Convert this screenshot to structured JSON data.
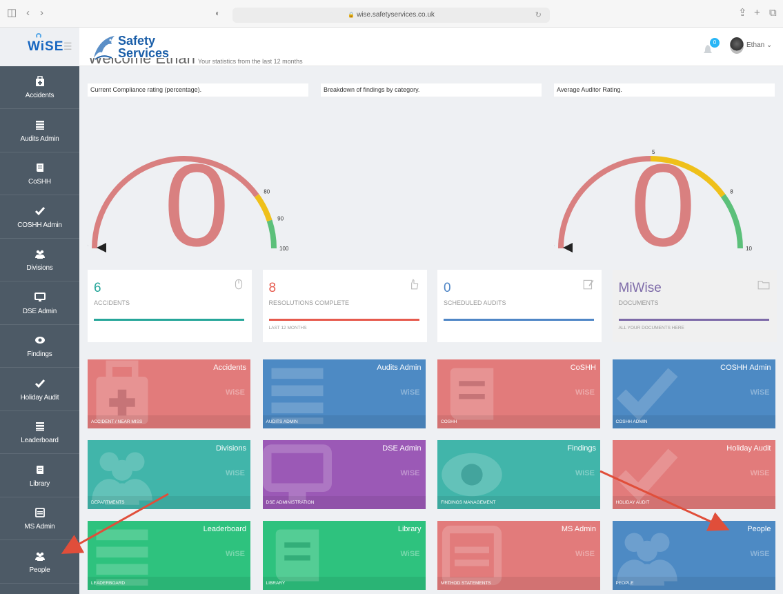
{
  "browser": {
    "url": "wise.safetyservices.co.uk"
  },
  "header": {
    "brand": "WiSE",
    "company_line1": "Safety",
    "company_line2": "Services",
    "notifications": "0",
    "user_name": "Ethan"
  },
  "welcome": {
    "title": "Welcome Ethan",
    "subtitle": "Your statistics from the last 12 months"
  },
  "sidebar": {
    "items": [
      {
        "label": "Accidents",
        "icon": "first-aid-icon"
      },
      {
        "label": "Audits Admin",
        "icon": "list-icon"
      },
      {
        "label": "CoSHH",
        "icon": "book-icon"
      },
      {
        "label": "COSHH Admin",
        "icon": "check-icon"
      },
      {
        "label": "Divisions",
        "icon": "users-icon"
      },
      {
        "label": "DSE Admin",
        "icon": "monitor-icon"
      },
      {
        "label": "Findings",
        "icon": "eye-icon"
      },
      {
        "label": "Holiday Audit",
        "icon": "check-icon"
      },
      {
        "label": "Leaderboard",
        "icon": "list-icon"
      },
      {
        "label": "Library",
        "icon": "book-icon"
      },
      {
        "label": "MS Admin",
        "icon": "calendar-icon"
      },
      {
        "label": "People",
        "icon": "users-icon"
      }
    ]
  },
  "panels": {
    "compliance": "Current Compliance rating (percentage).",
    "breakdown": "Breakdown of findings by category.",
    "auditor": "Average Auditor Rating."
  },
  "gauges": {
    "compliance": {
      "value": "0",
      "min_label": "0",
      "ticks": [
        "80",
        "90"
      ],
      "max_label": "100",
      "min": 0,
      "max": 100,
      "bands": [
        {
          "from": 0,
          "to": 80,
          "color": "#d98080"
        },
        {
          "from": 80,
          "to": 90,
          "color": "#efc01a"
        },
        {
          "from": 90,
          "to": 100,
          "color": "#5cc07a"
        }
      ]
    },
    "auditor": {
      "value": "0",
      "min_label": "0",
      "ticks": [
        "5",
        "8"
      ],
      "max_label": "10",
      "min": 0,
      "max": 10,
      "bands": [
        {
          "from": 0,
          "to": 5,
          "color": "#d98080"
        },
        {
          "from": 5,
          "to": 8,
          "color": "#efc01a"
        },
        {
          "from": 8,
          "to": 10,
          "color": "#5cc07a"
        }
      ]
    }
  },
  "stats": [
    {
      "value": "6",
      "label": "ACCIDENTS",
      "sub": "",
      "color": "#26a69a"
    },
    {
      "value": "8",
      "label": "RESOLUTIONS COMPLETE",
      "sub": "LAST 12 MONTHS",
      "color": "#e65a4d"
    },
    {
      "value": "0",
      "label": "SCHEDULED AUDITS",
      "sub": "",
      "color": "#4f86c6"
    },
    {
      "value": "MiWise",
      "label": "DOCUMENTS",
      "sub": "ALL YOUR DOCUMENTS HERE",
      "color": "#7d6aa8"
    }
  ],
  "tiles": [
    {
      "title": "Accidents",
      "footer": "ACCIDENT / NEAR MISS",
      "color": "#e27b7b"
    },
    {
      "title": "Audits Admin",
      "footer": "AUDITS ADMIN",
      "color": "#4d8ac4"
    },
    {
      "title": "CoSHH",
      "footer": "COSHH",
      "color": "#e27b7b"
    },
    {
      "title": "COSHH Admin",
      "footer": "COSHH ADMIN",
      "color": "#4d8ac4"
    },
    {
      "title": "Divisions",
      "footer": "DEPARTMENTS",
      "color": "#41b5aa"
    },
    {
      "title": "DSE Admin",
      "footer": "DSE ADMINISTRATION",
      "color": "#9b59b6"
    },
    {
      "title": "Findings",
      "footer": "FINDINGS MANAGEMENT",
      "color": "#41b5aa"
    },
    {
      "title": "Holiday Audit",
      "footer": "HOLIDAY AUDIT",
      "color": "#e27b7b"
    },
    {
      "title": "Leaderboard",
      "footer": "LEADERBOARD",
      "color": "#2ec27e"
    },
    {
      "title": "Library",
      "footer": "LIBRARY",
      "color": "#2ec27e"
    },
    {
      "title": "MS Admin",
      "footer": "METHOD STATEMENTS",
      "color": "#e27b7b"
    },
    {
      "title": "People",
      "footer": "PEOPLE",
      "color": "#4d8ac4"
    }
  ],
  "tile_watermark": "WiSE"
}
